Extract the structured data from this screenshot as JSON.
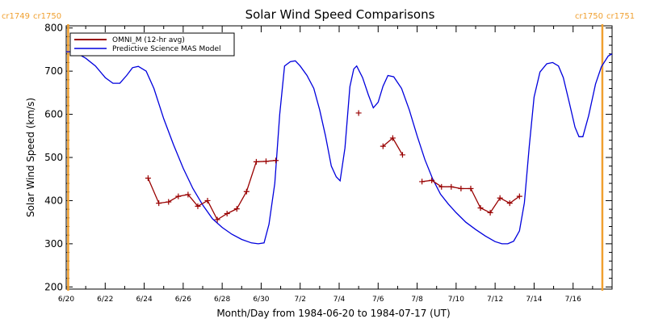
{
  "chart_data": {
    "type": "line",
    "title": "Solar Wind Speed Comparisons",
    "xlabel": "Month/Day from 1984-06-20 to 1984-07-17 (UT)",
    "ylabel": "Solar Wind Speed (km/s)",
    "x_domain_days": [
      0,
      28
    ],
    "ylim": [
      195,
      805
    ],
    "x_ticks": [
      {
        "day": 0,
        "label": "6/20"
      },
      {
        "day": 2,
        "label": "6/22"
      },
      {
        "day": 4,
        "label": "6/24"
      },
      {
        "day": 6,
        "label": "6/26"
      },
      {
        "day": 8,
        "label": "6/28"
      },
      {
        "day": 10,
        "label": "6/30"
      },
      {
        "day": 12,
        "label": "7/2"
      },
      {
        "day": 14,
        "label": "7/4"
      },
      {
        "day": 16,
        "label": "7/6"
      },
      {
        "day": 18,
        "label": "7/8"
      },
      {
        "day": 20,
        "label": "7/10"
      },
      {
        "day": 22,
        "label": "7/12"
      },
      {
        "day": 24,
        "label": "7/14"
      },
      {
        "day": 26,
        "label": "7/16"
      }
    ],
    "y_ticks": [
      200,
      300,
      400,
      500,
      600,
      700,
      800
    ],
    "carrington_markers": [
      {
        "day": 0.1,
        "left_label": "cr1749",
        "right_label": "cr1750"
      },
      {
        "day": 27.5,
        "left_label": "cr1750",
        "right_label": "cr1751"
      }
    ],
    "grid": false,
    "legend_position": "top-left",
    "series": [
      {
        "name": "OMNI_M (12-hr avg)",
        "color": "#990000",
        "style": "line-plus-markers",
        "segments": [
          [
            [
              4.2,
              452
            ],
            [
              4.75,
              394
            ],
            [
              5.25,
              397
            ],
            [
              5.75,
              410
            ],
            [
              6.25,
              414
            ],
            [
              6.75,
              387
            ],
            [
              7.25,
              400
            ],
            [
              7.75,
              356
            ],
            [
              8.25,
              370
            ],
            [
              8.75,
              381
            ],
            [
              9.25,
              421
            ],
            [
              9.75,
              490
            ],
            [
              10.25,
              491
            ],
            [
              10.75,
              493
            ]
          ],
          [
            [
              15.0,
              603
            ]
          ],
          [
            [
              16.25,
              526
            ],
            [
              16.75,
              545
            ],
            [
              17.25,
              506
            ]
          ],
          [
            [
              18.25,
              444
            ],
            [
              18.75,
              447
            ],
            [
              19.25,
              432
            ],
            [
              19.75,
              432
            ],
            [
              20.25,
              428
            ],
            [
              20.75,
              428
            ],
            [
              21.25,
              383
            ],
            [
              21.75,
              372
            ],
            [
              22.25,
              406
            ],
            [
              22.75,
              394
            ],
            [
              23.25,
              410
            ]
          ]
        ]
      },
      {
        "name": "Predictive Science MAS Model",
        "color": "#0000dd",
        "style": "line",
        "points": [
          [
            0.0,
            745
          ],
          [
            0.3,
            745
          ],
          [
            0.6,
            740
          ],
          [
            1.0,
            730
          ],
          [
            1.5,
            712
          ],
          [
            2.0,
            685
          ],
          [
            2.4,
            672
          ],
          [
            2.75,
            672
          ],
          [
            3.1,
            690
          ],
          [
            3.4,
            708
          ],
          [
            3.7,
            711
          ],
          [
            4.1,
            700
          ],
          [
            4.5,
            660
          ],
          [
            5.0,
            590
          ],
          [
            5.5,
            530
          ],
          [
            6.0,
            475
          ],
          [
            6.5,
            428
          ],
          [
            7.0,
            390
          ],
          [
            7.5,
            358
          ],
          [
            8.0,
            338
          ],
          [
            8.5,
            322
          ],
          [
            9.0,
            310
          ],
          [
            9.5,
            302
          ],
          [
            9.85,
            300
          ],
          [
            10.15,
            302
          ],
          [
            10.4,
            345
          ],
          [
            10.7,
            440
          ],
          [
            10.95,
            600
          ],
          [
            11.2,
            712
          ],
          [
            11.5,
            722
          ],
          [
            11.75,
            724
          ],
          [
            12.0,
            712
          ],
          [
            12.35,
            690
          ],
          [
            12.7,
            660
          ],
          [
            13.0,
            610
          ],
          [
            13.3,
            550
          ],
          [
            13.6,
            480
          ],
          [
            13.85,
            455
          ],
          [
            14.05,
            446
          ],
          [
            14.3,
            522
          ],
          [
            14.55,
            664
          ],
          [
            14.75,
            705
          ],
          [
            14.9,
            712
          ],
          [
            15.2,
            685
          ],
          [
            15.5,
            645
          ],
          [
            15.75,
            615
          ],
          [
            16.0,
            628
          ],
          [
            16.25,
            665
          ],
          [
            16.5,
            690
          ],
          [
            16.8,
            687
          ],
          [
            17.2,
            660
          ],
          [
            17.6,
            610
          ],
          [
            18.0,
            550
          ],
          [
            18.4,
            495
          ],
          [
            18.8,
            450
          ],
          [
            19.2,
            415
          ],
          [
            19.6,
            392
          ],
          [
            20.0,
            372
          ],
          [
            20.5,
            350
          ],
          [
            21.0,
            333
          ],
          [
            21.5,
            318
          ],
          [
            22.0,
            305
          ],
          [
            22.35,
            300
          ],
          [
            22.65,
            300
          ],
          [
            22.95,
            306
          ],
          [
            23.25,
            330
          ],
          [
            23.5,
            395
          ],
          [
            23.75,
            525
          ],
          [
            24.0,
            640
          ],
          [
            24.3,
            698
          ],
          [
            24.65,
            717
          ],
          [
            24.95,
            720
          ],
          [
            25.25,
            712
          ],
          [
            25.5,
            685
          ],
          [
            25.8,
            628
          ],
          [
            26.1,
            570
          ],
          [
            26.3,
            548
          ],
          [
            26.5,
            548
          ],
          [
            26.8,
            597
          ],
          [
            27.15,
            670
          ],
          [
            27.45,
            710
          ],
          [
            27.8,
            735
          ],
          [
            28.0,
            740
          ]
        ]
      }
    ]
  }
}
